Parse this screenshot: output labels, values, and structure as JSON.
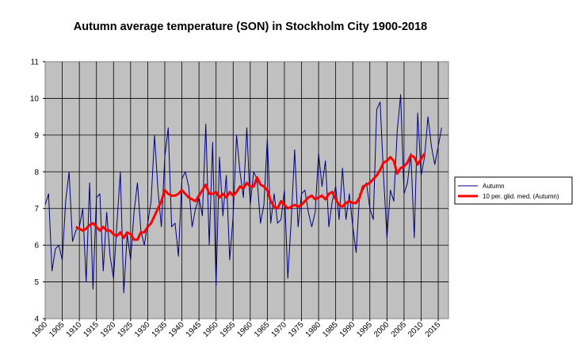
{
  "chart_data": {
    "type": "line",
    "title": "Autumn average temperature (SON) in Stockholm City 1900-2018",
    "xlabel": "",
    "ylabel": "",
    "xlim": [
      1900,
      2018
    ],
    "ylim": [
      4,
      11
    ],
    "x_ticks": [
      "1900",
      "1905",
      "1910",
      "1915",
      "1920",
      "1925",
      "1930",
      "1935",
      "1940",
      "1945",
      "1950",
      "1955",
      "1960",
      "1965",
      "1970",
      "1975",
      "1980",
      "1985",
      "1990",
      "1995",
      "2000",
      "2005",
      "2010",
      "2015"
    ],
    "y_ticks": [
      "4",
      "5",
      "6",
      "7",
      "8",
      "9",
      "10",
      "11"
    ],
    "grid": true,
    "legend_position": "right",
    "plot_background": "#c0c0c0",
    "series": [
      {
        "name": "Autumn",
        "color": "#000080",
        "x_start": 1900,
        "values": [
          7.1,
          7.4,
          5.3,
          5.9,
          6.0,
          5.6,
          7.2,
          8.0,
          6.1,
          6.4,
          6.5,
          7.0,
          5.0,
          7.7,
          4.8,
          7.3,
          7.4,
          5.3,
          6.9,
          5.7,
          5.1,
          6.6,
          8.0,
          4.7,
          6.3,
          5.6,
          6.9,
          7.7,
          6.4,
          6.0,
          6.6,
          7.2,
          9.0,
          7.5,
          6.5,
          8.4,
          9.2,
          6.5,
          6.6,
          5.7,
          7.8,
          8.0,
          7.6,
          6.5,
          7.0,
          7.3,
          6.8,
          9.3,
          6.0,
          8.8,
          4.9,
          8.4,
          6.8,
          7.9,
          5.6,
          6.8,
          9.0,
          8.0,
          7.3,
          9.2,
          7.1,
          8.0,
          7.8,
          6.6,
          7.1,
          8.9,
          6.6,
          7.4,
          6.6,
          6.7,
          7.5,
          5.1,
          6.7,
          8.6,
          6.5,
          7.4,
          7.5,
          6.9,
          6.5,
          6.9,
          8.5,
          7.6,
          8.3,
          6.5,
          7.2,
          7.6,
          6.7,
          8.1,
          6.7,
          7.4,
          6.5,
          5.8,
          7.4,
          7.5,
          7.7,
          7.0,
          6.7,
          9.7,
          9.9,
          7.9,
          6.2,
          7.5,
          7.2,
          9.1,
          10.1,
          7.4,
          7.7,
          8.5,
          6.2,
          9.6,
          7.9,
          8.4,
          9.5,
          8.7,
          8.2,
          8.7,
          9.2
        ]
      },
      {
        "name": "10 per. glid. med. (Autumn)",
        "color": "#ff0000",
        "x_start": 1909,
        "values": [
          6.5,
          6.45,
          6.4,
          6.45,
          6.55,
          6.6,
          6.5,
          6.4,
          6.5,
          6.4,
          6.4,
          6.3,
          6.25,
          6.35,
          6.2,
          6.35,
          6.3,
          6.15,
          6.15,
          6.35,
          6.35,
          6.5,
          6.6,
          6.8,
          7.0,
          7.2,
          7.5,
          7.4,
          7.35,
          7.35,
          7.4,
          7.5,
          7.4,
          7.3,
          7.25,
          7.2,
          7.35,
          7.5,
          7.65,
          7.4,
          7.4,
          7.45,
          7.3,
          7.4,
          7.3,
          7.45,
          7.35,
          7.45,
          7.6,
          7.55,
          7.7,
          7.6,
          7.6,
          7.85,
          7.65,
          7.6,
          7.5,
          7.2,
          7.05,
          7.0,
          7.2,
          7.1,
          7.0,
          7.05,
          7.1,
          7.05,
          7.1,
          7.2,
          7.3,
          7.35,
          7.25,
          7.3,
          7.35,
          7.25,
          7.4,
          7.45,
          7.25,
          7.1,
          7.05,
          7.15,
          7.2,
          7.15,
          7.15,
          7.3,
          7.6,
          7.65,
          7.7,
          7.8,
          7.9,
          8.05,
          8.25,
          8.3,
          8.4,
          8.3,
          7.95,
          8.1,
          8.15,
          8.25,
          8.45,
          8.4,
          8.2,
          8.35,
          8.5
        ]
      }
    ]
  }
}
